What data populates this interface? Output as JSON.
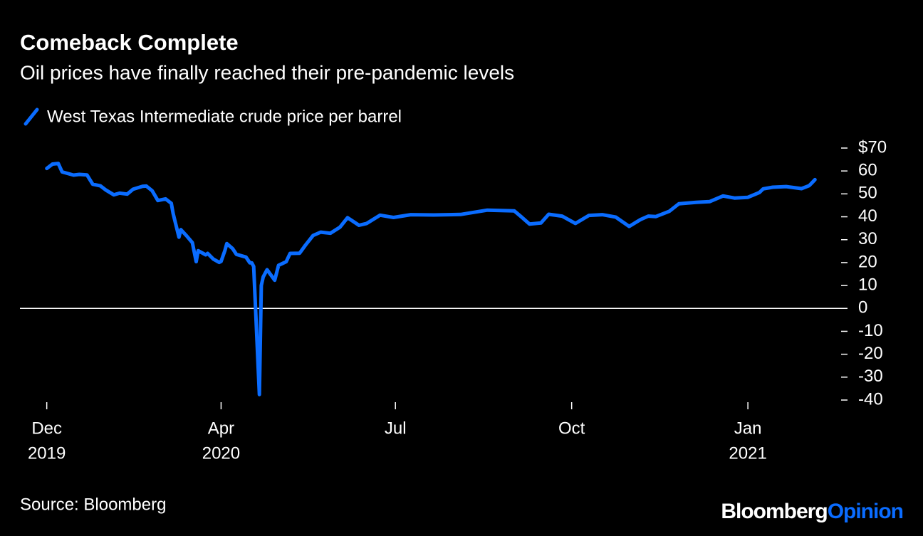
{
  "chart_data": {
    "type": "line",
    "title": "Comeback Complete",
    "subtitle": "Oil prices have finally reached their pre-pandemic levels",
    "source": "Source: Bloomberg",
    "brand": [
      "Bloomberg",
      "Opinion"
    ],
    "zero_line": true,
    "xlim": [
      "2019-12-17",
      "2021-02-21"
    ],
    "xticks": [
      {
        "value": "2019-12-31",
        "label": "Dec",
        "year": "2019"
      },
      {
        "value": "2020-03-31",
        "label": "Apr",
        "year": "2020"
      },
      {
        "value": "2020-06-30",
        "label": "Jul"
      },
      {
        "value": "2020-09-30",
        "label": "Oct"
      },
      {
        "value": "2020-12-31",
        "label": "Jan",
        "year": "2021"
      }
    ],
    "ylim": [
      -40,
      70
    ],
    "yticks": [
      {
        "value": 70,
        "label": "$70"
      },
      60,
      50,
      40,
      30,
      20,
      10,
      0,
      -10,
      -20,
      -30,
      -40
    ],
    "x": [
      "2019-12-31",
      "2020-01-03",
      "2020-01-06",
      "2020-01-08",
      "2020-01-14",
      "2020-01-17",
      "2020-01-21",
      "2020-01-24",
      "2020-01-28",
      "2020-01-31",
      "2020-02-04",
      "2020-02-07",
      "2020-02-11",
      "2020-02-14",
      "2020-02-19",
      "2020-02-21",
      "2020-02-24",
      "2020-02-27",
      "2020-03-02",
      "2020-03-05",
      "2020-03-06",
      "2020-03-09",
      "2020-03-10",
      "2020-03-13",
      "2020-03-16",
      "2020-03-18",
      "2020-03-19",
      "2020-03-23",
      "2020-03-24",
      "2020-03-27",
      "2020-03-30",
      "2020-03-31",
      "2020-04-02",
      "2020-04-03",
      "2020-04-06",
      "2020-04-08",
      "2020-04-13",
      "2020-04-15",
      "2020-04-16",
      "2020-04-17",
      "2020-04-20",
      "2020-04-21",
      "2020-04-22",
      "2020-04-24",
      "2020-04-28",
      "2020-04-30",
      "2020-05-04",
      "2020-05-06",
      "2020-05-11",
      "2020-05-14",
      "2020-05-18",
      "2020-05-22",
      "2020-05-27",
      "2020-06-01",
      "2020-06-05",
      "2020-06-11",
      "2020-06-15",
      "2020-06-22",
      "2020-06-29",
      "2020-07-08",
      "2020-07-20",
      "2020-08-03",
      "2020-08-17",
      "2020-08-31",
      "2020-09-04",
      "2020-09-08",
      "2020-09-14",
      "2020-09-18",
      "2020-09-25",
      "2020-10-02",
      "2020-10-09",
      "2020-10-16",
      "2020-10-23",
      "2020-10-30",
      "2020-11-05",
      "2020-11-09",
      "2020-11-13",
      "2020-11-20",
      "2020-11-25",
      "2020-12-04",
      "2020-12-11",
      "2020-12-18",
      "2020-12-24",
      "2020-12-31",
      "2021-01-06",
      "2021-01-08",
      "2021-01-13",
      "2021-01-20",
      "2021-01-28",
      "2021-02-01",
      "2021-02-04"
    ],
    "series": [
      {
        "name": "West Texas Intermediate crude price per barrel",
        "color": "#0a6cff",
        "values": [
          61.1,
          63.0,
          63.3,
          59.6,
          58.2,
          58.5,
          58.3,
          54.2,
          53.5,
          51.6,
          49.6,
          50.3,
          49.9,
          52.0,
          53.3,
          53.4,
          51.4,
          47.1,
          47.8,
          45.9,
          41.3,
          31.1,
          34.4,
          31.7,
          28.7,
          20.4,
          25.2,
          23.4,
          24.0,
          21.5,
          20.1,
          20.5,
          25.3,
          28.3,
          26.1,
          23.6,
          22.4,
          19.9,
          19.9,
          18.3,
          -37.6,
          10.0,
          13.8,
          16.9,
          12.3,
          18.8,
          20.4,
          24.0,
          24.1,
          27.6,
          31.8,
          33.3,
          32.8,
          35.4,
          39.6,
          36.3,
          37.1,
          40.7,
          39.7,
          40.9,
          40.8,
          41.0,
          42.9,
          42.6,
          39.8,
          36.8,
          37.3,
          41.1,
          40.3,
          37.1,
          40.6,
          40.9,
          39.9,
          35.8,
          38.8,
          40.3,
          40.1,
          42.4,
          45.7,
          46.3,
          46.6,
          49.1,
          48.2,
          48.5,
          50.6,
          52.2,
          52.9,
          53.2,
          52.3,
          53.6,
          56.2
        ]
      }
    ]
  }
}
